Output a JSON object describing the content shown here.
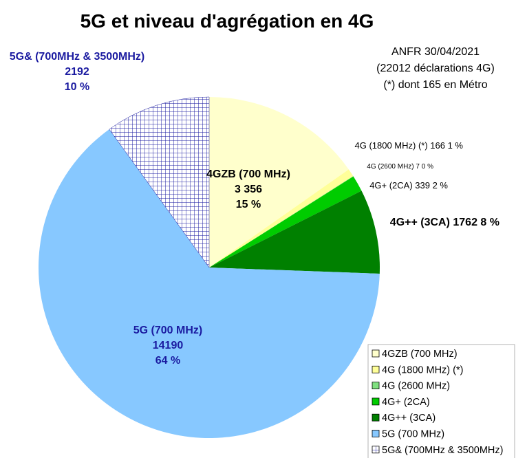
{
  "chart_data": {
    "type": "pie",
    "title": "5G et niveau d'agrégation en 4G",
    "subtitle_lines": [
      "ANFR 30/04/2021",
      "(22012 déclarations 4G)",
      "(*) dont 165 en Métro"
    ],
    "slices": [
      {
        "name": "4GZB (700 MHz)",
        "value": 3356,
        "value_text": "3 356",
        "pct_text": "15 %",
        "color": "#ffffcc"
      },
      {
        "name": "4G (1800 MHz) (*)",
        "value": 166,
        "value_text": "166",
        "pct_text": "1 %",
        "color": "#ffff99"
      },
      {
        "name": "4G (2600 MHz)",
        "value": 7,
        "value_text": "7",
        "pct_text": "0 %",
        "color": "#80e080"
      },
      {
        "name": "4G+ (2CA)",
        "value": 339,
        "value_text": "339",
        "pct_text": "2 %",
        "color": "#00cc00"
      },
      {
        "name": "4G++ (3CA)",
        "value": 1762,
        "value_text": "1762",
        "pct_text": "8 %",
        "color": "#008000"
      },
      {
        "name": "5G (700 MHz)",
        "value": 14190,
        "value_text": "14190",
        "pct_text": "64 %",
        "color": "#87c8ff"
      },
      {
        "name": "5G& (700MHz & 3500MHz)",
        "value": 2192,
        "value_text": "2192",
        "pct_text": "10 %",
        "color": "#ffffff",
        "pattern": "grid"
      }
    ],
    "slice_labels": [
      {
        "lines": [
          "4GZB (700 MHz)",
          "3 356",
          "15 %"
        ]
      },
      {
        "lines": [
          "4G (1800 MHz) (*) 166 1 %"
        ]
      },
      {
        "lines": [
          "4G (2600 MHz) 7 0 %"
        ]
      },
      {
        "lines": [
          "4G+ (2CA) 339 2 %"
        ]
      },
      {
        "lines": [
          "4G++ (3CA) 1762 8 %"
        ]
      },
      {
        "lines": [
          "5G (700 MHz)",
          "14190",
          "64 %"
        ]
      },
      {
        "lines": [
          "5G& (700MHz & 3500MHz)",
          "2192",
          "10 %"
        ]
      }
    ],
    "legend": {
      "position": "bottom-right",
      "entries": [
        "4GZB (700 MHz)",
        "4G (1800 MHz) (*)",
        "4G (2600 MHz)",
        "4G+ (2CA)",
        "4G++ (3CA)",
        "5G (700 MHz)",
        "5G& (700MHz & 3500MHz)"
      ]
    },
    "start_angle_deg": 0,
    "direction": "clockwise"
  }
}
